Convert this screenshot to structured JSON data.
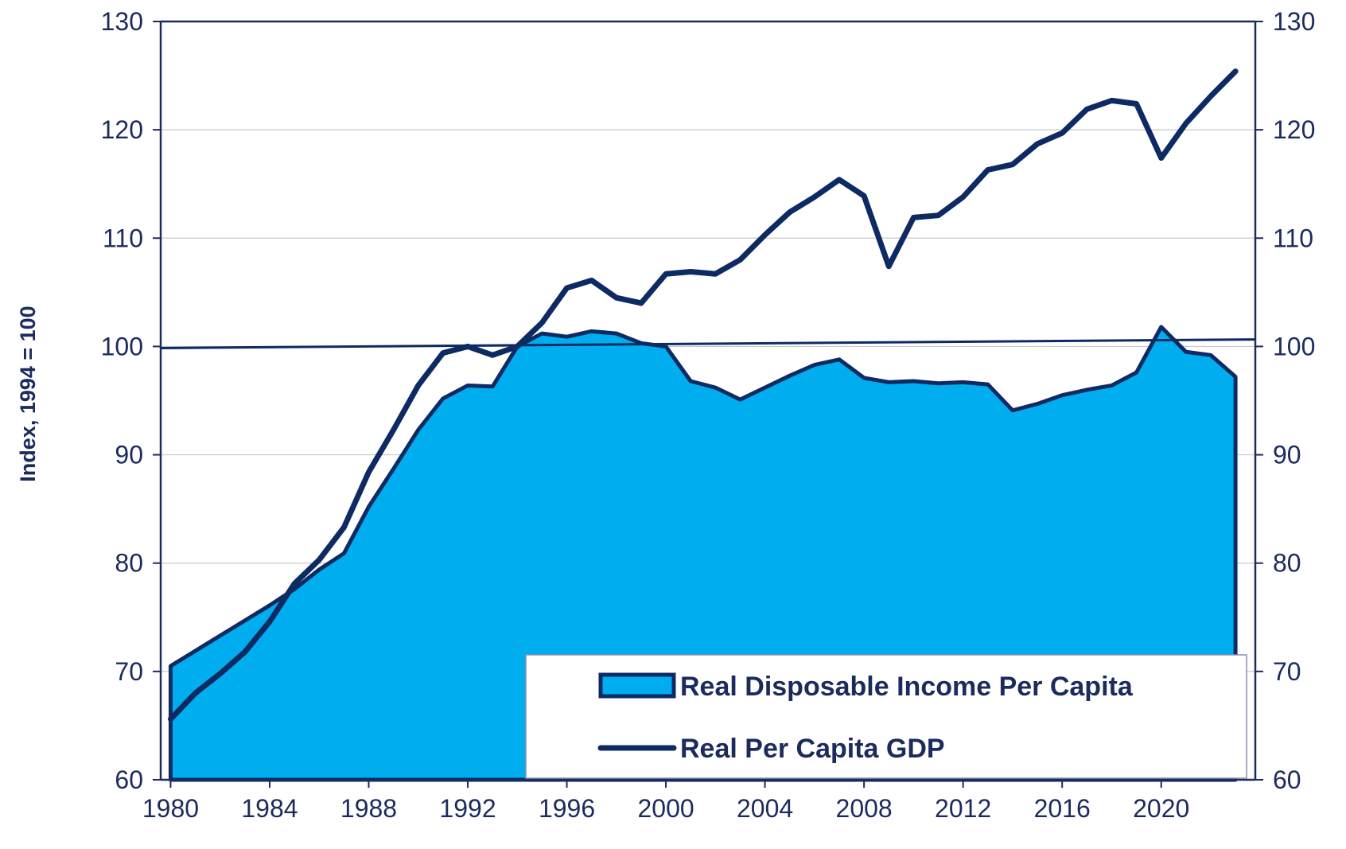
{
  "chart_data": {
    "type": "area",
    "ylabel": "Index, 1994 = 100",
    "ylim": [
      60,
      130
    ],
    "yticks": [
      "60",
      "70",
      "80",
      "90",
      "100",
      "110",
      "120",
      "130"
    ],
    "y2ticks": [
      "60",
      "70",
      "80",
      "90",
      "100",
      "110",
      "120",
      "130"
    ],
    "xlim": [
      1979.6,
      2023.8
    ],
    "xticks": [
      "1980",
      "1984",
      "1988",
      "1992",
      "1996",
      "2000",
      "2004",
      "2008",
      "2012",
      "2016",
      "2020"
    ],
    "x": [
      1980,
      1981,
      1982,
      1983,
      1984,
      1985,
      1986,
      1987,
      1988,
      1989,
      1990,
      1991,
      1992,
      1993,
      1994,
      1995,
      1996,
      1997,
      1998,
      1999,
      2000,
      2001,
      2002,
      2003,
      2004,
      2005,
      2006,
      2007,
      2008,
      2009,
      2010,
      2011,
      2012,
      2013,
      2014,
      2015,
      2016,
      2017,
      2018,
      2019,
      2020,
      2021,
      2022,
      2023
    ],
    "series": [
      {
        "name": "Real Disposable Income Per Capita",
        "kind": "area",
        "color": "#00aeef",
        "values": [
          70.5,
          71.9,
          73.3,
          74.7,
          76.1,
          77.6,
          79.4,
          80.9,
          85.2,
          88.7,
          92.3,
          95.2,
          96.4,
          96.3,
          100.0,
          101.2,
          100.9,
          101.4,
          101.2,
          100.3,
          100.0,
          96.8,
          96.2,
          95.1,
          96.2,
          97.3,
          98.3,
          98.8,
          97.1,
          96.7,
          96.8,
          96.6,
          96.7,
          96.5,
          94.1,
          94.7,
          95.5,
          96.0,
          96.4,
          97.6,
          101.8,
          99.5,
          99.2,
          97.2
        ]
      },
      {
        "name": "Real Per Capita GDP",
        "kind": "line",
        "color": "#0d2a63",
        "values": [
          65.6,
          68.0,
          69.8,
          71.8,
          74.6,
          78.1,
          80.3,
          83.3,
          88.4,
          92.3,
          96.4,
          99.4,
          100.0,
          99.2,
          100.0,
          102.2,
          105.4,
          106.1,
          104.5,
          104.0,
          106.7,
          106.9,
          106.7,
          108.0,
          110.3,
          112.4,
          113.8,
          115.4,
          113.9,
          107.4,
          111.9,
          112.1,
          113.8,
          116.3,
          116.8,
          118.7,
          119.7,
          121.9,
          122.7,
          122.4,
          117.4,
          120.6,
          123.1,
          125.4
        ]
      }
    ],
    "reference_line": {
      "value": 100
    },
    "grid": true,
    "legend": {
      "position": "bottom-right"
    },
    "colors": {
      "axis": "#1c2b5e",
      "grid": "#c8c8c8",
      "border": "#0d2a63"
    }
  }
}
